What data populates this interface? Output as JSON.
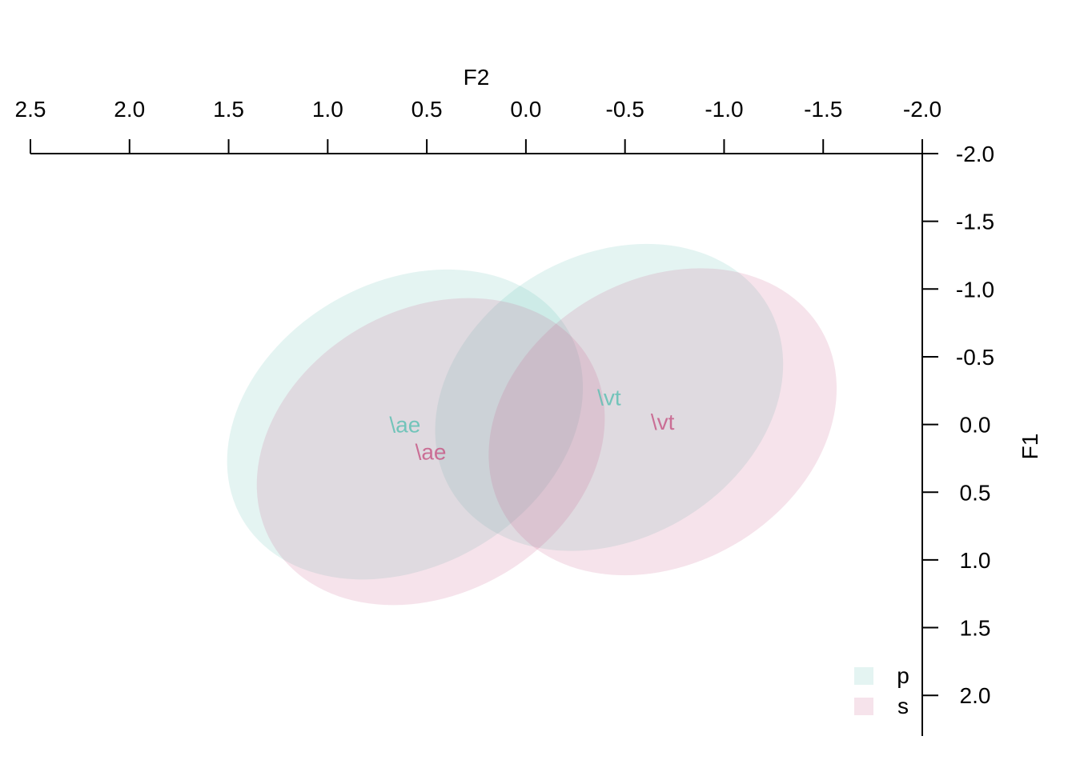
{
  "chart_data": {
    "type": "scatter",
    "xlabel": "F2",
    "ylabel": "F1",
    "x_axis": {
      "position": "top",
      "direction": "reversed",
      "range": [
        2.5,
        -2.0
      ],
      "ticks": [
        2.5,
        2.0,
        1.5,
        1.0,
        0.5,
        0.0,
        -0.5,
        -1.0,
        -1.5,
        -2.0
      ],
      "tick_labels": [
        "2.5",
        "2.0",
        "1.5",
        "1.0",
        "0.5",
        "0.0",
        "-0.5",
        "-1.0",
        "-1.5",
        "-2.0"
      ]
    },
    "y_axis": {
      "position": "right",
      "direction": "reversed",
      "range": [
        -2.0,
        2.3
      ],
      "ticks": [
        -2.0,
        -1.5,
        -1.0,
        -0.5,
        0.0,
        0.5,
        1.0,
        1.5,
        2.0
      ],
      "tick_labels": [
        "-2.0",
        "-1.5",
        "-1.0",
        "-0.5",
        "0.0",
        "0.5",
        "1.0",
        "1.5",
        "2.0"
      ]
    },
    "grid": false,
    "legend_placement": "bottom-right",
    "series": [
      {
        "name": "p",
        "color": "#5fbfb3",
        "ellipses": [
          {
            "label": "\\ae",
            "x": 0.61,
            "y": 0.0,
            "rx": 1.9,
            "ry": 1.05,
            "angle": -30
          },
          {
            "label": "\\vt",
            "x": -0.42,
            "y": -0.2,
            "rx": 1.85,
            "ry": 1.05,
            "angle": -30
          }
        ]
      },
      {
        "name": "s",
        "color": "#c75a87",
        "ellipses": [
          {
            "label": "\\ae",
            "x": 0.48,
            "y": 0.2,
            "rx": 1.85,
            "ry": 1.05,
            "angle": -30
          },
          {
            "label": "\\vt",
            "x": -0.69,
            "y": -0.02,
            "rx": 1.85,
            "ry": 1.05,
            "angle": -30
          }
        ]
      }
    ],
    "legend": [
      {
        "label": "p",
        "color": "#5fbfb3"
      },
      {
        "label": "s",
        "color": "#c75a87"
      }
    ]
  }
}
